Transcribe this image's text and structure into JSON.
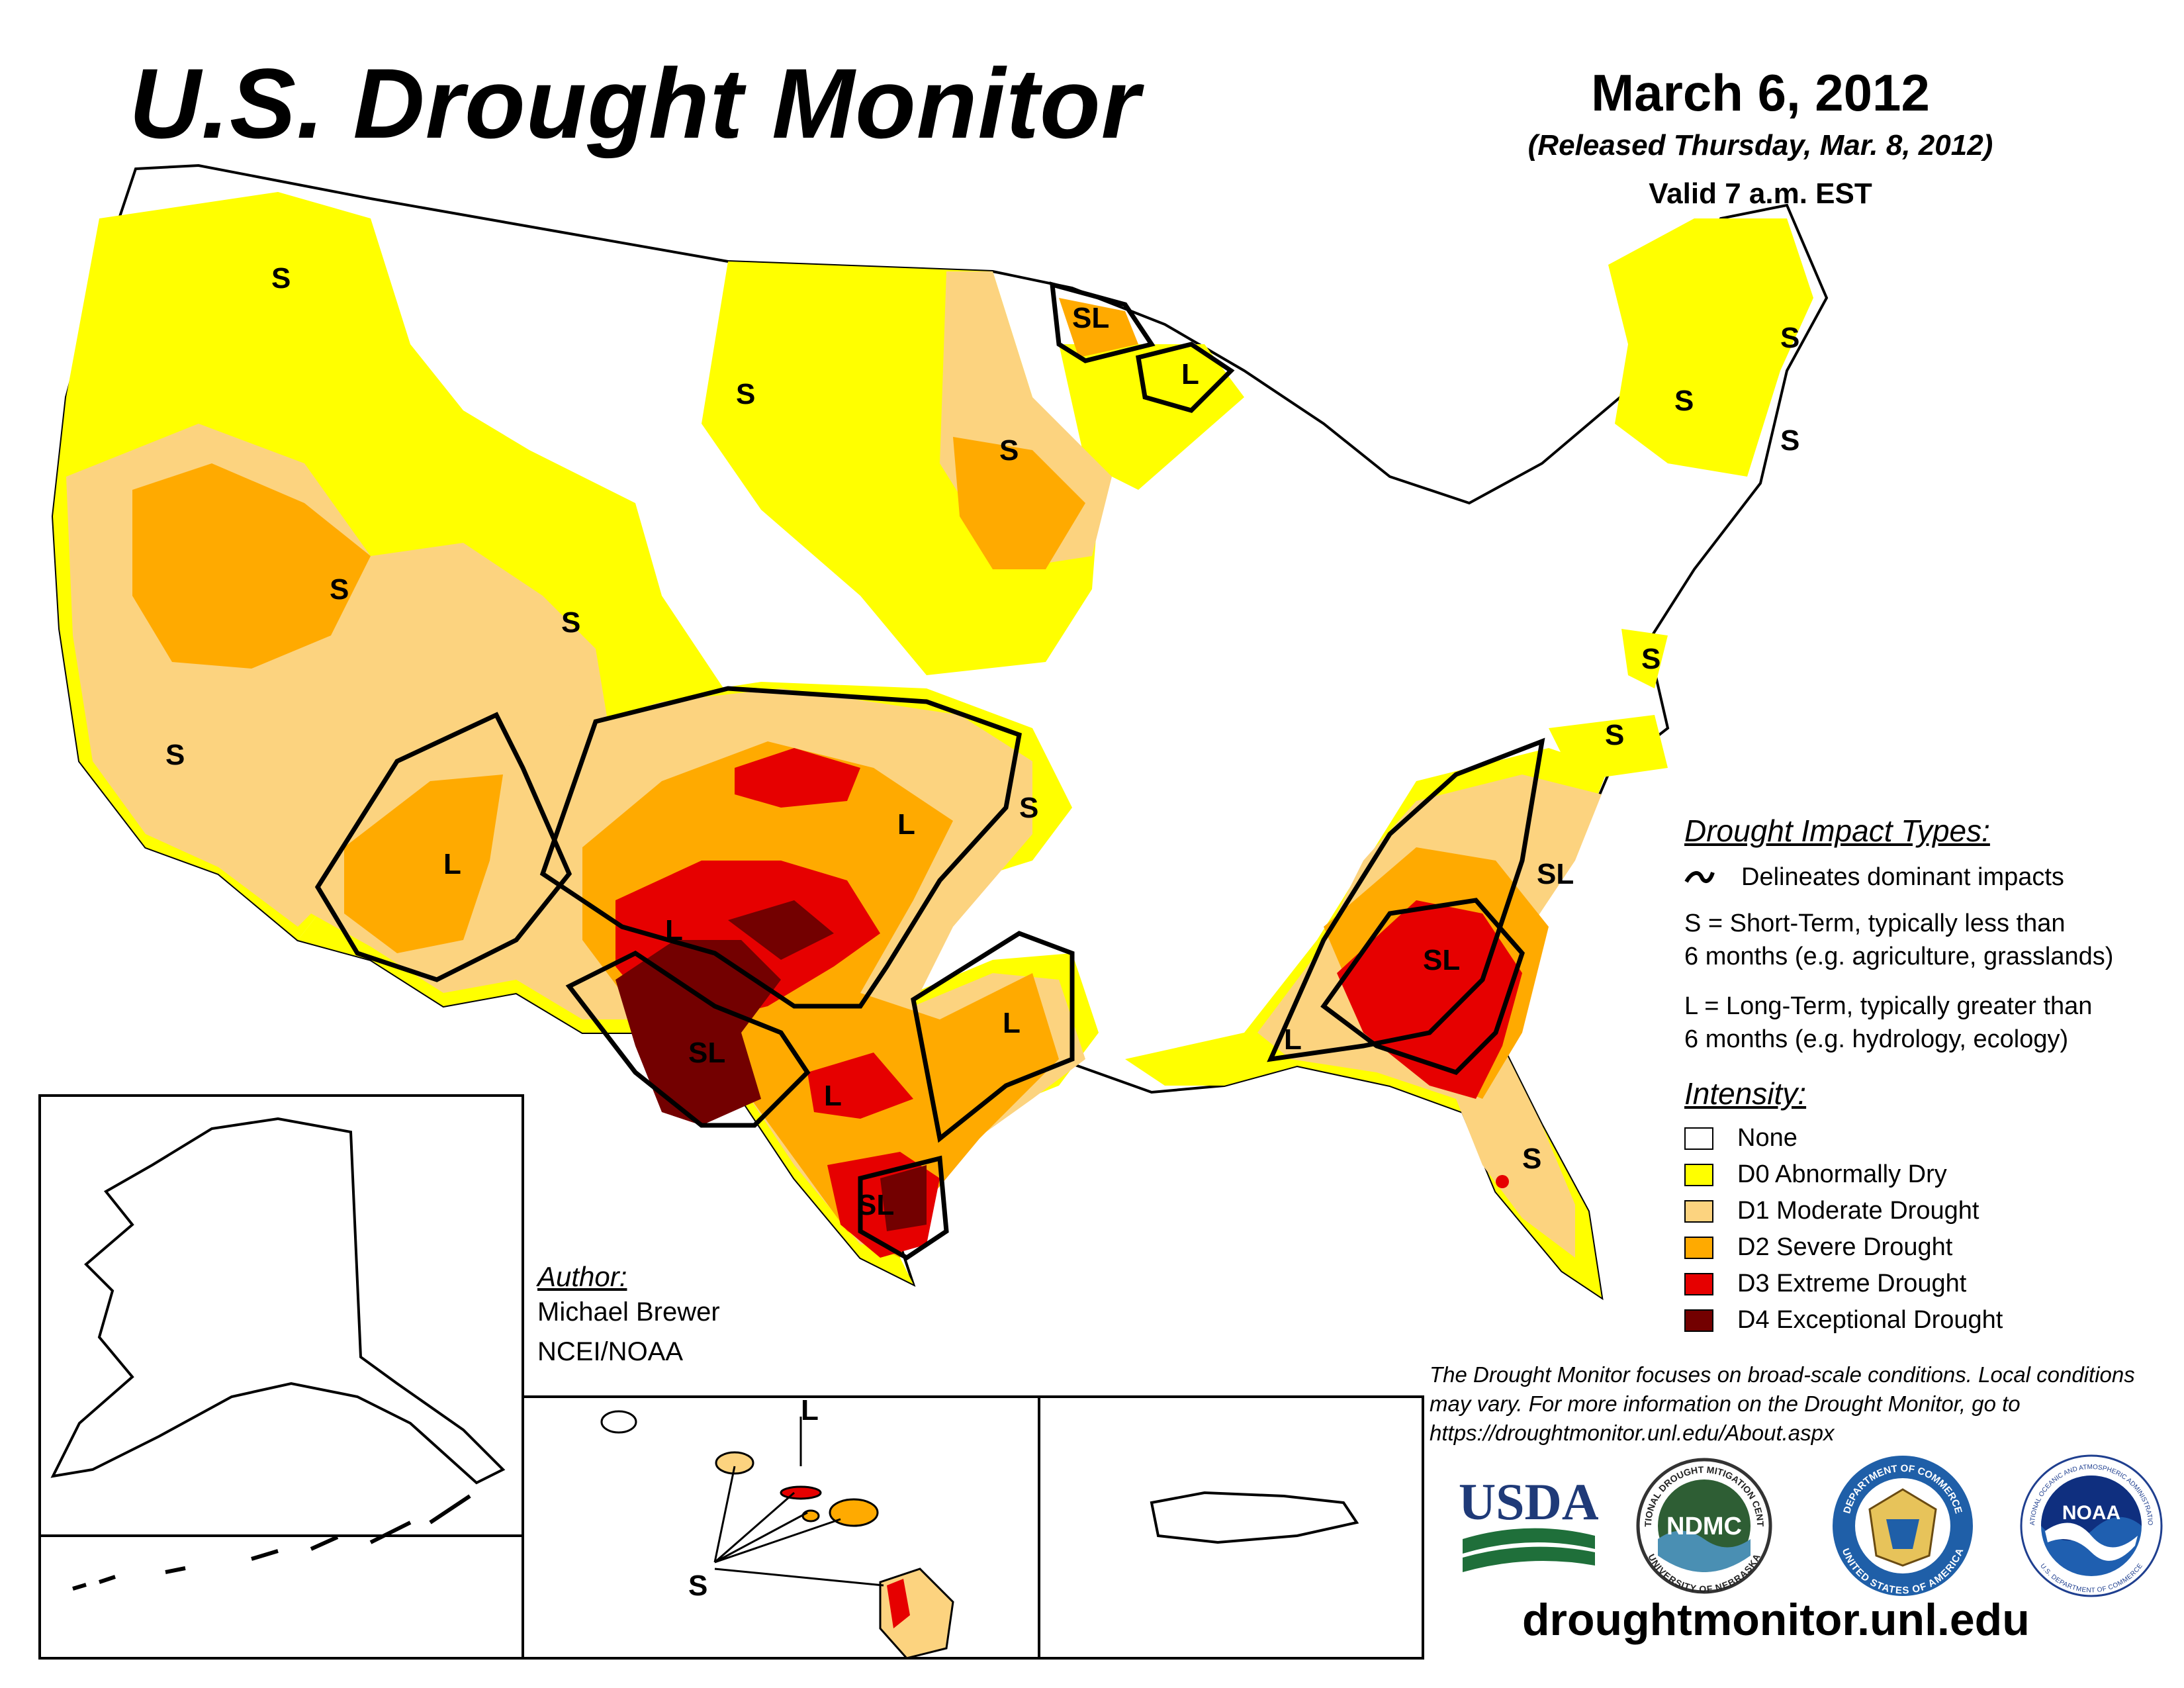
{
  "header": {
    "title": "U.S. Drought Monitor",
    "date": "March 6, 2012",
    "released": "(Released Thursday, Mar. 8, 2012)",
    "valid": "Valid 7 a.m. EST"
  },
  "impact_legend": {
    "heading": "Drought Impact Types:",
    "delineates": "Delineates dominant impacts",
    "short_term_line1": "S = Short-Term, typically less than",
    "short_term_line2": "6 months (e.g. agriculture, grasslands)",
    "long_term_line1": "L = Long-Term, typically greater than",
    "long_term_line2": "6 months (e.g. hydrology, ecology)"
  },
  "intensity_legend": {
    "heading": "Intensity:",
    "items": [
      {
        "label": "None",
        "color": "#ffffff"
      },
      {
        "label": "D0 Abnormally Dry",
        "color": "#ffff00"
      },
      {
        "label": "D1 Moderate Drought",
        "color": "#fcd37f"
      },
      {
        "label": "D2 Severe Drought",
        "color": "#ffaa00"
      },
      {
        "label": "D3 Extreme Drought",
        "color": "#e60000"
      },
      {
        "label": "D4 Exceptional Drought",
        "color": "#730000"
      }
    ]
  },
  "author": {
    "heading": "Author:",
    "name": "Michael Brewer",
    "org": "NCEI/NOAA"
  },
  "disclaimer": "The Drought Monitor focuses on broad-scale conditions. Local conditions may vary. For more information on the Drought Monitor, go to https://droughtmonitor.unl.edu/About.aspx",
  "website": "droughtmonitor.unl.edu",
  "logos": {
    "usda": "USDA",
    "ndmc": "NDMC",
    "ndmc_ring_top": "NATIONAL DROUGHT MITIGATION CENTER",
    "ndmc_ring_bottom": "UNIVERSITY OF NEBRASKA",
    "commerce_ring_top": "DEPARTMENT OF COMMERCE",
    "commerce_ring_bottom": "UNITED STATES OF AMERICA",
    "noaa": "NOAA",
    "noaa_ring_top": "NATIONAL OCEANIC AND ATMOSPHERIC ADMINISTRATION",
    "noaa_ring_bottom": "U.S. DEPARTMENT OF COMMERCE"
  },
  "map_labels": {
    "s": "S",
    "l": "L",
    "sl": "SL"
  }
}
